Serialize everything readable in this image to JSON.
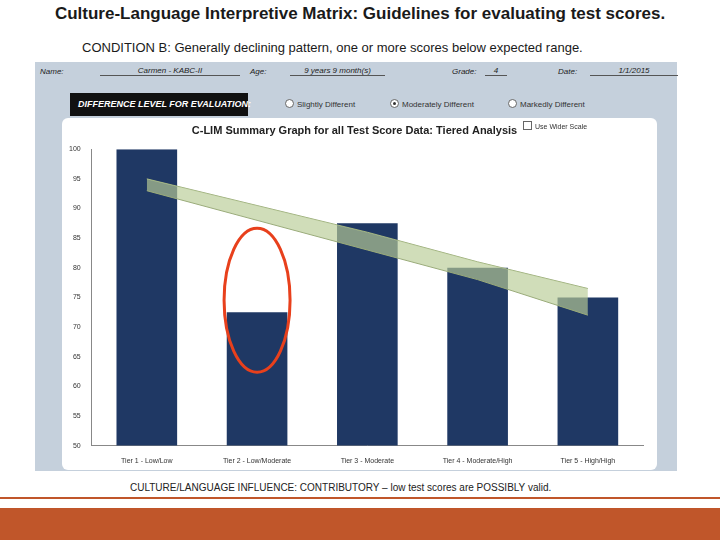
{
  "slide": {
    "title": "Culture-Language Interpretive Matrix: Guidelines for evaluating test scores.",
    "subtitle": "CONDITION B: Generally declining pattern, one or more scores below expected range.",
    "footer": "CULTURE/LANGUAGE INFLUENCE: CONTRIBUTORY – low test scores are POSSIBLY valid."
  },
  "form": {
    "fields": [
      {
        "label": "Name:",
        "value": "Carmen - KABC-II"
      },
      {
        "label": "Age:",
        "value": "9 years 9 month(s)"
      },
      {
        "label": "Grade:",
        "value": "4"
      },
      {
        "label": "Date:",
        "value": "1/1/2015"
      }
    ],
    "difference_level": {
      "label": "DIFFERENCE LEVEL FOR EVALUATION:",
      "options": [
        "Slightly Different",
        "Moderately Different",
        "Markedly Different"
      ],
      "selected": "Moderately Different"
    },
    "checkbox": {
      "label": "Use Wider Scale",
      "checked": false
    }
  },
  "chart_data": {
    "type": "bar",
    "title": "C-LIM Summary Graph for all Test Score Data: Tiered Analysis",
    "categories": [
      "Tier 1 - Low/Low",
      "Tier 2 - Low/Moderate",
      "Tier 3 - Moderate",
      "Tier 4 - Moderate/High",
      "Tier 5 - High/High"
    ],
    "values": [
      100,
      72.5,
      87.5,
      80,
      75
    ],
    "color": "#1f3864",
    "expected_range": {
      "upper": [
        95,
        90.5,
        86,
        81,
        76.5
      ],
      "lower": [
        93,
        88,
        83,
        78,
        72
      ],
      "color": "#b9cc96"
    },
    "annotations": [
      {
        "category": "Tier 2 - Low/Moderate",
        "shape": "circle",
        "color": "#e8401c"
      }
    ],
    "ylim": [
      50,
      100
    ],
    "yticks": [
      50,
      55,
      60,
      65,
      70,
      75,
      80,
      85,
      90,
      95,
      100
    ],
    "grid": false
  }
}
